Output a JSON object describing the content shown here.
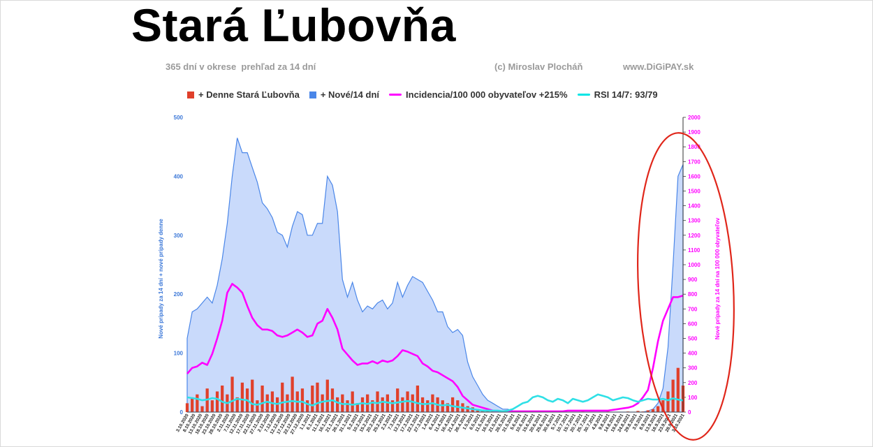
{
  "header": {
    "title": "Stará Ľubovňa",
    "subtitle_left": "365 dní v okrese  prehľad za 14 dní",
    "subtitle_mid": "(c) Miroslav Plocháň",
    "subtitle_right": "www.DiGiPAY.sk"
  },
  "legend": [
    {
      "label": "+ Denne Stará Ľubovňa",
      "color": "#e0402b",
      "kind": "square"
    },
    {
      "label": "+ Nové/14 dní",
      "color": "#4a86e8",
      "kind": "square"
    },
    {
      "label": "Incidencia/100 000 obyvateľov +215%",
      "color": "#ff00ff",
      "kind": "line"
    },
    {
      "label": "RSI 14/7: 93/79",
      "color": "#00e5e5",
      "kind": "line"
    }
  ],
  "colors": {
    "area_fill": "#c9dafb",
    "area_stroke": "#4a86e8",
    "bars": "#e0402b",
    "incidence": "#ff00ff",
    "rsi": "#2fe0e6",
    "highlight_ellipse": "#e0261a",
    "left_axis": "#3c78d8",
    "right_axis": "#ff00ff"
  },
  "chart_data": {
    "type": "area",
    "ylabel": "Nové prípady za 14 dní + nové prípady denne",
    "ylabel_right": "Nové prípady za 14 dní na 100 000 obyvateľov",
    "ylim": [
      0,
      500
    ],
    "ylim_right": [
      0,
      2000
    ],
    "y_ticks": [
      0,
      100,
      200,
      300,
      400,
      500
    ],
    "y_ticks_right": [
      0,
      100,
      200,
      300,
      400,
      500,
      600,
      700,
      800,
      900,
      1000,
      1100,
      1200,
      1300,
      1400,
      1500,
      1600,
      1700,
      1800,
      1900,
      2000
    ],
    "x_tick_labels": [
      "3.10.2020",
      "8.10.2020",
      "13.10.2020",
      "18.10.2020",
      "23.10.2020",
      "28.10.2020",
      "2.11.2020",
      "7.11.2020",
      "12.11.2020",
      "17.11.2020",
      "22.11.2020",
      "27.11.2020",
      "2.12.2020",
      "7.12.2020",
      "12.12.2020",
      "17.12.2020",
      "22.12.2020",
      "27.12.2020",
      "1.1.2021",
      "6.1.2021",
      "11.1.2021",
      "16.1.2021",
      "21.1.2021",
      "26.1.2021",
      "31.1.2021",
      "5.2.2021",
      "10.2.2021",
      "15.2.2021",
      "20.2.2021",
      "25.2.2021",
      "2.3.2021",
      "7.3.2021",
      "12.3.2021",
      "17.3.2021",
      "22.3.2021",
      "27.3.2021",
      "1.4.2021",
      "6.4.2021",
      "11.4.2021",
      "16.4.2021",
      "21.4.2021",
      "26.4.2021",
      "1.5.2021",
      "6.5.2021",
      "11.5.2021",
      "16.5.2021",
      "21.5.2021",
      "26.5.2021",
      "31.5.2021",
      "5.6.2021",
      "10.6.2021",
      "15.6.2021",
      "20.6.2021",
      "25.6.2021",
      "30.6.2021",
      "5.7.2021",
      "10.7.2021",
      "15.7.2021",
      "20.7.2021",
      "25.7.2021",
      "30.7.2021",
      "4.8.2021",
      "9.8.2021",
      "14.8.2021",
      "19.8.2021",
      "24.8.2021",
      "29.8.2021",
      "3.9.2021",
      "8.9.2021",
      "13.9.2021",
      "18.9.2021",
      "23.9.2021",
      "28.9.2021",
      "3.10.2021"
    ],
    "series": [
      {
        "name": "+ Nové/14 dní",
        "axis": "left",
        "values": [
          125,
          170,
          175,
          185,
          195,
          185,
          215,
          260,
          320,
          400,
          465,
          440,
          440,
          415,
          390,
          355,
          345,
          330,
          305,
          300,
          280,
          315,
          340,
          335,
          300,
          300,
          320,
          320,
          400,
          385,
          340,
          225,
          195,
          220,
          190,
          170,
          180,
          175,
          185,
          190,
          175,
          185,
          220,
          195,
          215,
          230,
          225,
          220,
          205,
          190,
          170,
          170,
          145,
          135,
          140,
          130,
          85,
          60,
          45,
          30,
          20,
          15,
          10,
          5,
          5,
          2,
          0,
          0,
          0,
          0,
          0,
          0,
          0,
          0,
          0,
          0,
          0,
          0,
          0,
          0,
          0,
          0,
          0,
          0,
          0,
          0,
          0,
          0,
          0,
          0,
          0,
          0,
          2,
          5,
          15,
          40,
          110,
          250,
          400,
          420
        ]
      },
      {
        "name": "Incidencia/100 000 obyvateľov +215%",
        "axis": "right",
        "values": [
          260,
          300,
          310,
          335,
          320,
          395,
          500,
          620,
          810,
          870,
          845,
          810,
          720,
          640,
          590,
          560,
          560,
          550,
          520,
          510,
          520,
          540,
          560,
          540,
          510,
          520,
          600,
          620,
          700,
          640,
          560,
          430,
          390,
          350,
          320,
          330,
          330,
          345,
          330,
          350,
          340,
          350,
          380,
          420,
          410,
          395,
          380,
          330,
          310,
          280,
          270,
          250,
          230,
          210,
          170,
          110,
          80,
          50,
          40,
          30,
          20,
          10,
          5,
          5,
          5,
          5,
          5,
          5,
          5,
          5,
          5,
          5,
          5,
          5,
          5,
          5,
          10,
          10,
          10,
          10,
          10,
          10,
          10,
          10,
          10,
          15,
          20,
          25,
          30,
          40,
          60,
          100,
          150,
          300,
          480,
          620,
          700,
          780,
          780,
          790
        ]
      },
      {
        "name": "RSI 14/7: 93/79",
        "axis": "right",
        "values": [
          100,
          95,
          90,
          80,
          85,
          95,
          90,
          70,
          60,
          75,
          90,
          85,
          80,
          55,
          50,
          60,
          70,
          60,
          55,
          65,
          70,
          75,
          70,
          70,
          55,
          45,
          60,
          70,
          75,
          80,
          65,
          55,
          55,
          50,
          55,
          60,
          55,
          65,
          60,
          70,
          65,
          60,
          65,
          70,
          75,
          70,
          60,
          55,
          55,
          60,
          50,
          45,
          50,
          40,
          35,
          30,
          25,
          20,
          15,
          10,
          10,
          10,
          10,
          5,
          10,
          20,
          40,
          60,
          70,
          100,
          110,
          100,
          80,
          70,
          90,
          80,
          60,
          90,
          80,
          70,
          80,
          100,
          120,
          110,
          100,
          80,
          90,
          100,
          95,
          80,
          70,
          80,
          90,
          85,
          85,
          90,
          80,
          93,
          85,
          79
        ]
      },
      {
        "name": "+ Denne Stará Ľubovňa",
        "axis": "left",
        "values": [
          15,
          25,
          30,
          10,
          40,
          20,
          35,
          45,
          30,
          60,
          25,
          50,
          40,
          55,
          20,
          45,
          30,
          35,
          25,
          50,
          30,
          60,
          35,
          40,
          20,
          45,
          50,
          30,
          55,
          40,
          25,
          30,
          20,
          35,
          15,
          25,
          30,
          20,
          35,
          25,
          30,
          20,
          40,
          25,
          35,
          30,
          45,
          25,
          20,
          30,
          25,
          20,
          15,
          25,
          20,
          15,
          10,
          8,
          5,
          4,
          3,
          2,
          1,
          1,
          0,
          0,
          0,
          1,
          0,
          0,
          0,
          0,
          0,
          1,
          0,
          0,
          0,
          0,
          0,
          1,
          0,
          0,
          0,
          0,
          1,
          0,
          0,
          0,
          1,
          0,
          2,
          1,
          3,
          5,
          10,
          20,
          35,
          55,
          75,
          45
        ]
      }
    ]
  }
}
